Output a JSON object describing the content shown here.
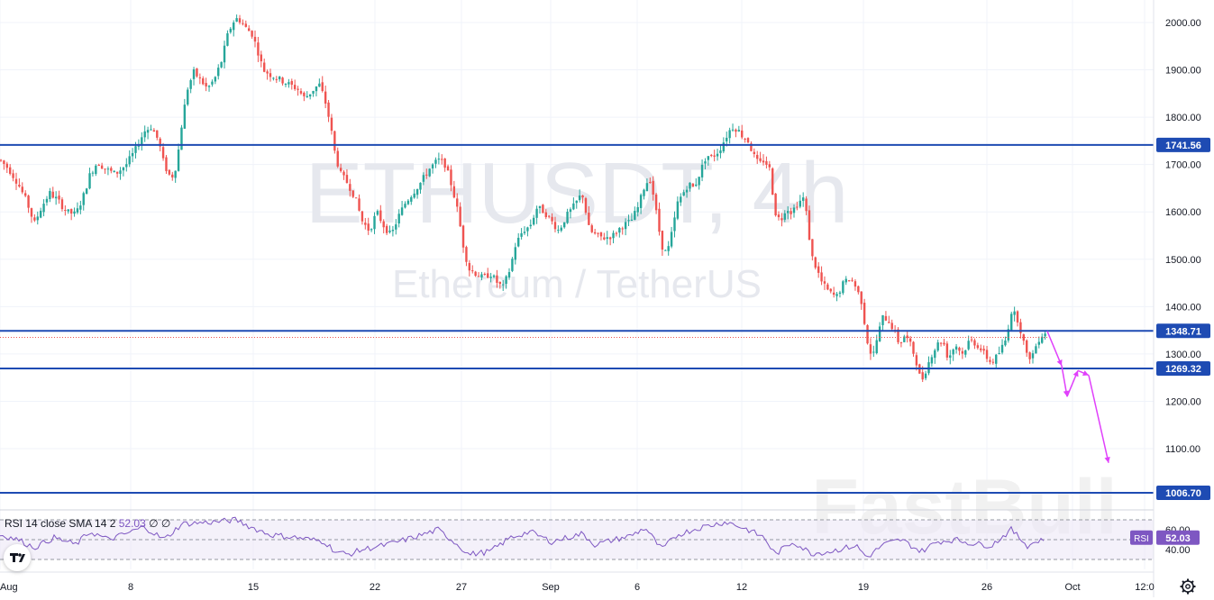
{
  "chart_data": {
    "type": "candlestick",
    "title": "ETHUSDT, 4h",
    "subtitle": "Ethereum / TetherUS",
    "watermark": "FastBull",
    "y_ticks": [
      "2000.00",
      "1900.00",
      "1800.00",
      "1700.00",
      "1600.00",
      "1500.00",
      "1400.00",
      "1300.00",
      "1200.00",
      "1100.00"
    ],
    "ylim": [
      1010,
      2045
    ],
    "x_ticks": [
      "Aug",
      "8",
      "15",
      "22",
      "27",
      "Sep",
      "6",
      "12",
      "19",
      "26",
      "Oct",
      "12:0"
    ],
    "candle_count": 342,
    "price_path": [
      [
        0,
        1710
      ],
      [
        10,
        1690
      ],
      [
        20,
        1660
      ],
      [
        30,
        1620
      ],
      [
        38,
        1575
      ],
      [
        46,
        1610
      ],
      [
        55,
        1640
      ],
      [
        64,
        1625
      ],
      [
        74,
        1600
      ],
      [
        84,
        1595
      ],
      [
        92,
        1630
      ],
      [
        100,
        1680
      ],
      [
        108,
        1705
      ],
      [
        118,
        1690
      ],
      [
        128,
        1680
      ],
      [
        140,
        1700
      ],
      [
        150,
        1730
      ],
      [
        160,
        1770
      ],
      [
        168,
        1780
      ],
      [
        176,
        1750
      ],
      [
        182,
        1700
      ],
      [
        190,
        1670
      ],
      [
        196,
        1700
      ],
      [
        202,
        1790
      ],
      [
        208,
        1860
      ],
      [
        215,
        1895
      ],
      [
        222,
        1880
      ],
      [
        230,
        1860
      ],
      [
        238,
        1880
      ],
      [
        246,
        1920
      ],
      [
        252,
        1970
      ],
      [
        258,
        2000
      ],
      [
        264,
        2010
      ],
      [
        272,
        1990
      ],
      [
        280,
        1975
      ],
      [
        286,
        1940
      ],
      [
        292,
        1900
      ],
      [
        300,
        1890
      ],
      [
        310,
        1880
      ],
      [
        320,
        1870
      ],
      [
        330,
        1860
      ],
      [
        338,
        1840
      ],
      [
        346,
        1855
      ],
      [
        354,
        1870
      ],
      [
        360,
        1840
      ],
      [
        366,
        1790
      ],
      [
        372,
        1720
      ],
      [
        378,
        1680
      ],
      [
        386,
        1660
      ],
      [
        394,
        1630
      ],
      [
        402,
        1580
      ],
      [
        410,
        1560
      ],
      [
        418,
        1600
      ],
      [
        426,
        1570
      ],
      [
        434,
        1550
      ],
      [
        442,
        1590
      ],
      [
        450,
        1620
      ],
      [
        458,
        1640
      ],
      [
        466,
        1660
      ],
      [
        476,
        1690
      ],
      [
        486,
        1710
      ],
      [
        494,
        1700
      ],
      [
        502,
        1650
      ],
      [
        508,
        1600
      ],
      [
        514,
        1530
      ],
      [
        520,
        1480
      ],
      [
        528,
        1470
      ],
      [
        536,
        1460
      ],
      [
        544,
        1470
      ],
      [
        552,
        1450
      ],
      [
        558,
        1440
      ],
      [
        566,
        1480
      ],
      [
        572,
        1530
      ],
      [
        580,
        1560
      ],
      [
        588,
        1570
      ],
      [
        596,
        1610
      ],
      [
        604,
        1600
      ],
      [
        612,
        1580
      ],
      [
        620,
        1560
      ],
      [
        628,
        1590
      ],
      [
        636,
        1610
      ],
      [
        646,
        1640
      ],
      [
        654,
        1560
      ],
      [
        662,
        1550
      ],
      [
        670,
        1545
      ],
      [
        680,
        1550
      ],
      [
        690,
        1570
      ],
      [
        700,
        1580
      ],
      [
        708,
        1610
      ],
      [
        716,
        1660
      ],
      [
        722,
        1670
      ],
      [
        728,
        1600
      ],
      [
        734,
        1530
      ],
      [
        740,
        1510
      ],
      [
        746,
        1560
      ],
      [
        752,
        1620
      ],
      [
        758,
        1640
      ],
      [
        764,
        1660
      ],
      [
        770,
        1650
      ],
      [
        776,
        1680
      ],
      [
        784,
        1720
      ],
      [
        790,
        1715
      ],
      [
        798,
        1730
      ],
      [
        806,
        1760
      ],
      [
        812,
        1780
      ],
      [
        818,
        1775
      ],
      [
        824,
        1760
      ],
      [
        830,
        1750
      ],
      [
        836,
        1720
      ],
      [
        842,
        1700
      ],
      [
        848,
        1710
      ],
      [
        854,
        1690
      ],
      [
        860,
        1600
      ],
      [
        866,
        1580
      ],
      [
        872,
        1610
      ],
      [
        878,
        1600
      ],
      [
        886,
        1620
      ],
      [
        892,
        1630
      ],
      [
        896,
        1580
      ],
      [
        900,
        1510
      ],
      [
        906,
        1480
      ],
      [
        912,
        1450
      ],
      [
        920,
        1430
      ],
      [
        928,
        1420
      ],
      [
        936,
        1450
      ],
      [
        944,
        1460
      ],
      [
        950,
        1440
      ],
      [
        956,
        1410
      ],
      [
        962,
        1330
      ],
      [
        968,
        1290
      ],
      [
        974,
        1340
      ],
      [
        980,
        1380
      ],
      [
        986,
        1370
      ],
      [
        992,
        1350
      ],
      [
        998,
        1320
      ],
      [
        1004,
        1340
      ],
      [
        1010,
        1320
      ],
      [
        1016,
        1290
      ],
      [
        1022,
        1240
      ],
      [
        1028,
        1270
      ],
      [
        1034,
        1300
      ],
      [
        1040,
        1320
      ],
      [
        1046,
        1330
      ],
      [
        1052,
        1290
      ],
      [
        1060,
        1320
      ],
      [
        1068,
        1300
      ],
      [
        1076,
        1330
      ],
      [
        1084,
        1320
      ],
      [
        1092,
        1300
      ],
      [
        1100,
        1280
      ],
      [
        1108,
        1300
      ],
      [
        1116,
        1330
      ],
      [
        1122,
        1390
      ],
      [
        1128,
        1380
      ],
      [
        1134,
        1340
      ],
      [
        1140,
        1290
      ],
      [
        1146,
        1300
      ],
      [
        1152,
        1330
      ],
      [
        1158,
        1345
      ],
      [
        1162,
        1348
      ]
    ],
    "levels": [
      {
        "price": 1741.56,
        "label": "1741.56"
      },
      {
        "price": 1348.71,
        "label": "1348.71"
      },
      {
        "price": 1269.32,
        "label": "1269.32"
      },
      {
        "price": 1006.7,
        "label": "1006.70"
      }
    ],
    "last_price_dotted": 1335,
    "projection": [
      [
        1162,
        1348
      ],
      [
        1178,
        1275
      ],
      [
        1184,
        1210
      ],
      [
        1196,
        1265
      ],
      [
        1208,
        1255
      ],
      [
        1230,
        1070
      ]
    ],
    "rsi": {
      "legend": "RSI 14 close SMA 14 2",
      "value": "52.03",
      "extra": "∅ ∅",
      "y_ticks": [
        "60.00",
        "40.00"
      ],
      "ylim": [
        20,
        80
      ],
      "upper": 70,
      "lower": 30,
      "mid": 50,
      "tag_label": "RSI",
      "path": [
        [
          0,
          55
        ],
        [
          20,
          50
        ],
        [
          38,
          42
        ],
        [
          60,
          52
        ],
        [
          84,
          45
        ],
        [
          100,
          58
        ],
        [
          120,
          50
        ],
        [
          140,
          56
        ],
        [
          160,
          63
        ],
        [
          182,
          50
        ],
        [
          202,
          66
        ],
        [
          222,
          67
        ],
        [
          240,
          68
        ],
        [
          262,
          70
        ],
        [
          280,
          62
        ],
        [
          300,
          55
        ],
        [
          330,
          52
        ],
        [
          360,
          48
        ],
        [
          372,
          38
        ],
        [
          386,
          35
        ],
        [
          402,
          40
        ],
        [
          430,
          45
        ],
        [
          458,
          52
        ],
        [
          486,
          60
        ],
        [
          508,
          45
        ],
        [
          520,
          35
        ],
        [
          544,
          38
        ],
        [
          566,
          52
        ],
        [
          588,
          58
        ],
        [
          612,
          48
        ],
        [
          646,
          56
        ],
        [
          660,
          45
        ],
        [
          700,
          54
        ],
        [
          716,
          62
        ],
        [
          734,
          40
        ],
        [
          752,
          55
        ],
        [
          776,
          62
        ],
        [
          806,
          68
        ],
        [
          830,
          60
        ],
        [
          848,
          52
        ],
        [
          860,
          35
        ],
        [
          880,
          48
        ],
        [
          900,
          36
        ],
        [
          920,
          38
        ],
        [
          950,
          44
        ],
        [
          962,
          32
        ],
        [
          980,
          45
        ],
        [
          1000,
          50
        ],
        [
          1022,
          38
        ],
        [
          1040,
          48
        ],
        [
          1060,
          50
        ],
        [
          1080,
          46
        ],
        [
          1100,
          44
        ],
        [
          1122,
          60
        ],
        [
          1140,
          44
        ],
        [
          1160,
          52
        ]
      ]
    }
  },
  "colors": {
    "up": "#26a69a",
    "down": "#ef5350",
    "level_line": "#1e4bb3",
    "projection": "#e040fb",
    "rsi_line": "#7e57c2",
    "rsi_band": "#ede7f6"
  },
  "icons": {
    "settings": "gear-icon",
    "logo": "tradingview-logo-icon"
  }
}
